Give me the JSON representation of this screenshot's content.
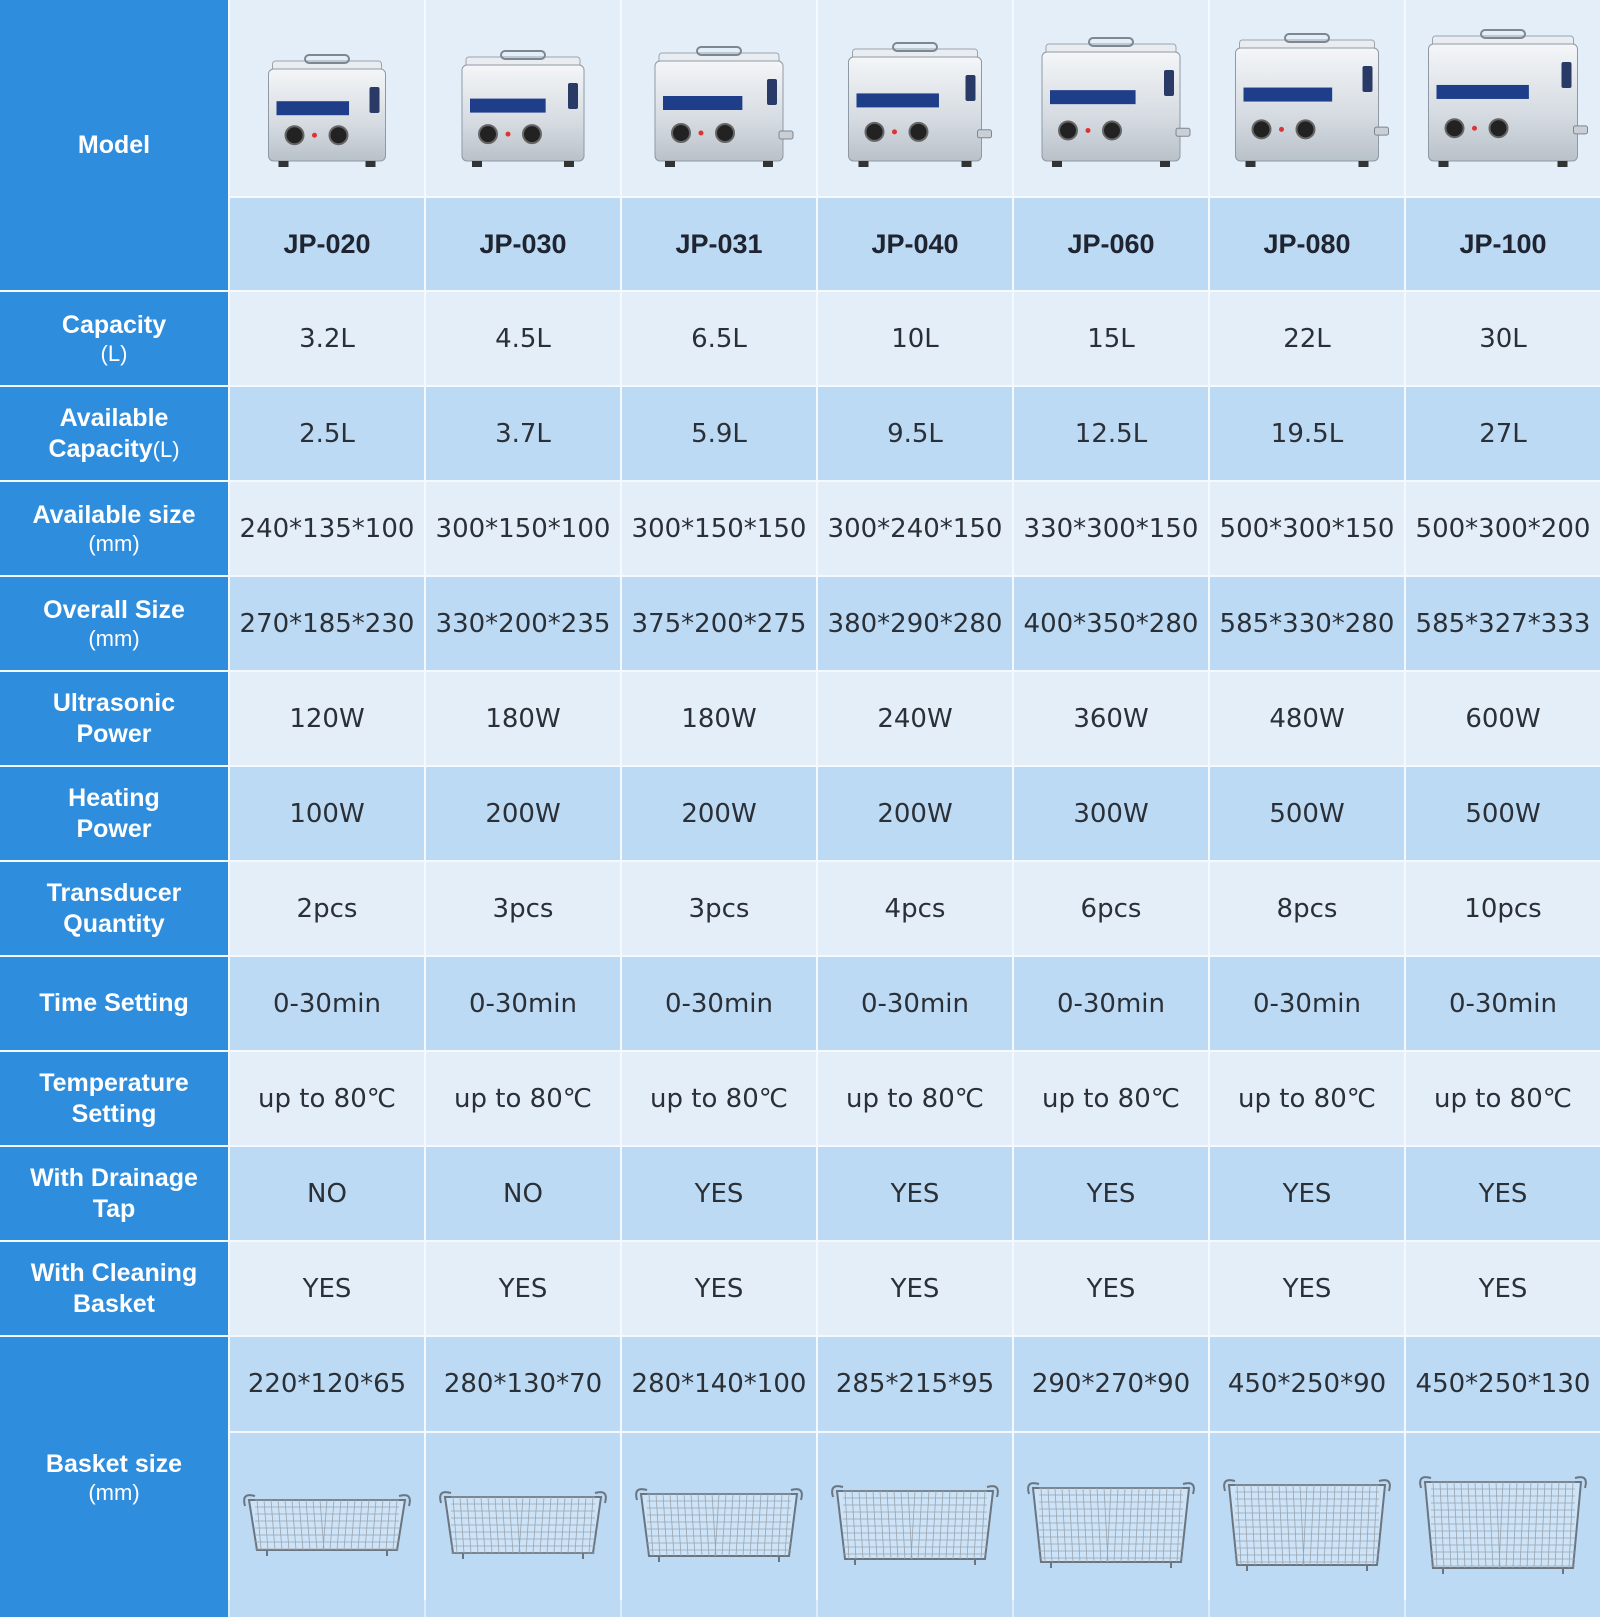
{
  "row_labels": {
    "model": "Model",
    "capacity": {
      "main": "Capacity",
      "unit": "(L)"
    },
    "available_capacity": {
      "main": "Available",
      "main2": "Capacity",
      "unit": "(L)"
    },
    "available_size": {
      "main": "Available size",
      "unit": "(mm)"
    },
    "overall_size": {
      "main": "Overall Size",
      "unit": "(mm)"
    },
    "ultrasonic_power": {
      "main": "Ultrasonic",
      "main2": "Power"
    },
    "heating_power": {
      "main": "Heating",
      "main2": "Power"
    },
    "transducer_quantity": {
      "main": "Transducer",
      "main2": "Quantity"
    },
    "time_setting": {
      "main": "Time Setting"
    },
    "temperature_setting": {
      "main": "Temperature",
      "main2": "Setting"
    },
    "drainage_tap": {
      "main": "With Drainage",
      "main2": "Tap"
    },
    "cleaning_basket": {
      "main": "With Cleaning",
      "main2": "Basket"
    },
    "basket_size": {
      "main": "Basket size",
      "unit": "(mm)"
    }
  },
  "models": [
    {
      "name": "JP-020",
      "capacity": "3.2L",
      "available_capacity": "2.5L",
      "available_size": "240*135*100",
      "overall_size": "270*185*230",
      "ultrasonic_power": "120W",
      "heating_power": "100W",
      "transducer_quantity": "2pcs",
      "time_setting": "0-30min",
      "temperature_setting": "up to 80℃",
      "drainage_tap": "NO",
      "cleaning_basket": "YES",
      "basket_size": "220*120*65"
    },
    {
      "name": "JP-030",
      "capacity": "4.5L",
      "available_capacity": "3.7L",
      "available_size": "300*150*100",
      "overall_size": "330*200*235",
      "ultrasonic_power": "180W",
      "heating_power": "200W",
      "transducer_quantity": "3pcs",
      "time_setting": "0-30min",
      "temperature_setting": "up to 80℃",
      "drainage_tap": "NO",
      "cleaning_basket": "YES",
      "basket_size": "280*130*70"
    },
    {
      "name": "JP-031",
      "capacity": "6.5L",
      "available_capacity": "5.9L",
      "available_size": "300*150*150",
      "overall_size": "375*200*275",
      "ultrasonic_power": "180W",
      "heating_power": "200W",
      "transducer_quantity": "3pcs",
      "time_setting": "0-30min",
      "temperature_setting": "up to 80℃",
      "drainage_tap": "YES",
      "cleaning_basket": "YES",
      "basket_size": "280*140*100"
    },
    {
      "name": "JP-040",
      "capacity": "10L",
      "available_capacity": "9.5L",
      "available_size": "300*240*150",
      "overall_size": "380*290*280",
      "ultrasonic_power": "240W",
      "heating_power": "200W",
      "transducer_quantity": "4pcs",
      "time_setting": "0-30min",
      "temperature_setting": "up to 80℃",
      "drainage_tap": "YES",
      "cleaning_basket": "YES",
      "basket_size": "285*215*95"
    },
    {
      "name": "JP-060",
      "capacity": "15L",
      "available_capacity": "12.5L",
      "available_size": "330*300*150",
      "overall_size": "400*350*280",
      "ultrasonic_power": "360W",
      "heating_power": "300W",
      "transducer_quantity": "6pcs",
      "time_setting": "0-30min",
      "temperature_setting": "up to 80℃",
      "drainage_tap": "YES",
      "cleaning_basket": "YES",
      "basket_size": "290*270*90"
    },
    {
      "name": "JP-080",
      "capacity": "22L",
      "available_capacity": "19.5L",
      "available_size": "500*300*150",
      "overall_size": "585*330*280",
      "ultrasonic_power": "480W",
      "heating_power": "500W",
      "transducer_quantity": "8pcs",
      "time_setting": "0-30min",
      "temperature_setting": "up to 80℃",
      "drainage_tap": "YES",
      "cleaning_basket": "YES",
      "basket_size": "450*250*90"
    },
    {
      "name": "JP-100",
      "capacity": "30L",
      "available_capacity": "27L",
      "available_size": "500*300*200",
      "overall_size": "585*327*333",
      "ultrasonic_power": "600W",
      "heating_power": "500W",
      "transducer_quantity": "10pcs",
      "time_setting": "0-30min",
      "temperature_setting": "up to 80℃",
      "drainage_tap": "YES",
      "cleaning_basket": "YES",
      "basket_size": "450*250*130"
    }
  ],
  "icons": {
    "product": "ultrasonic-cleaner-image",
    "basket": "wire-basket-image"
  },
  "colors": {
    "header_blue": "#2f8ddd",
    "row_light": "#e3eef9",
    "row_dark": "#bcdaf4"
  }
}
